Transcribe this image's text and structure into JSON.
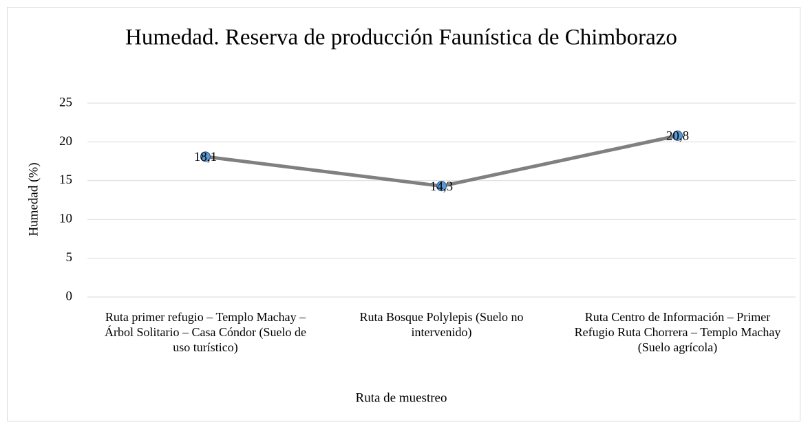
{
  "chart_data": {
    "type": "line",
    "title": "Humedad. Reserva de producción Faunística de Chimborazo",
    "x_label": "Ruta de muestreo",
    "y_label": "Humedad (%)",
    "categories": [
      "Ruta primer refugio – Templo Machay – Árbol Solitario – Casa Cóndor (Suelo de uso turístico)",
      "Ruta Bosque Polylepis (Suelo no intervenido)",
      "Ruta Centro de Información – Primer Refugio Ruta Chorrera – Templo Machay (Suelo agrícola)"
    ],
    "series": [
      {
        "name": "Humedad",
        "color": "#808080",
        "marker_color": "#5b9bd5",
        "values": [
          18.1,
          14.3,
          20.8
        ],
        "value_labels": [
          "18,1",
          "14,3",
          "20,8"
        ]
      }
    ],
    "ylim": [
      0,
      25
    ],
    "yticks": [
      0,
      5,
      10,
      15,
      20,
      25
    ],
    "grid": true
  }
}
